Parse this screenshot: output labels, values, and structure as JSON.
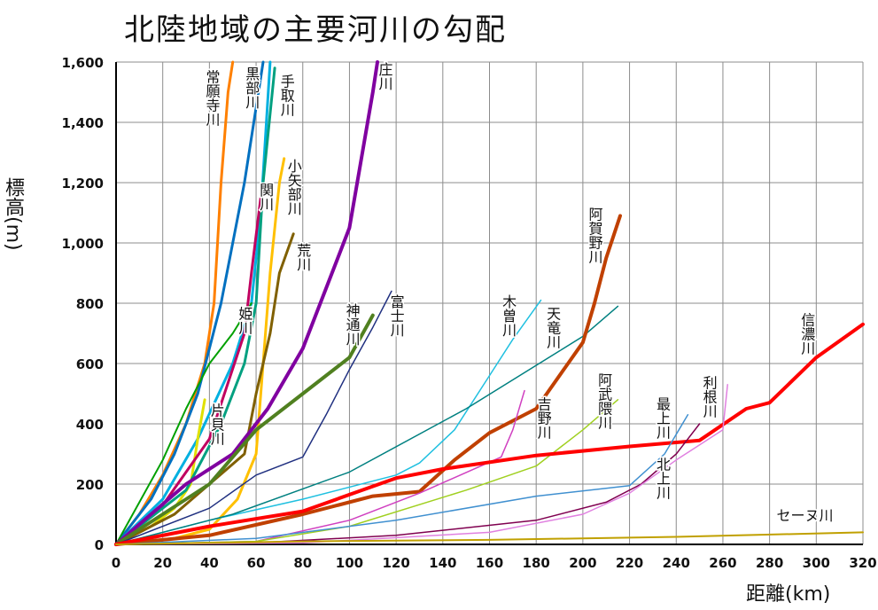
{
  "chart_data": {
    "type": "line",
    "title": "北陸地域の主要河川の勾配",
    "xlabel": "距離(km)",
    "ylabel": "標高(m)",
    "xlim": [
      0,
      320
    ],
    "ylim": [
      0,
      1600
    ],
    "x_ticks": [
      "0",
      "20",
      "40",
      "60",
      "80",
      "100",
      "120",
      "140",
      "160",
      "180",
      "200",
      "220",
      "240",
      "260",
      "280",
      "300",
      "320"
    ],
    "y_ticks": [
      "0",
      "200",
      "400",
      "600",
      "800",
      "1,000",
      "1,200",
      "1,400",
      "1,600"
    ],
    "grid": true,
    "series": [
      {
        "name": "常願寺川",
        "color": "#ff8000",
        "width": 3,
        "points": [
          [
            0,
            0
          ],
          [
            10,
            100
          ],
          [
            20,
            230
          ],
          [
            30,
            400
          ],
          [
            38,
            600
          ],
          [
            42,
            800
          ],
          [
            45,
            1200
          ],
          [
            48,
            1500
          ],
          [
            50,
            1600
          ]
        ]
      },
      {
        "name": "黒部川",
        "color": "#0070c0",
        "width": 3,
        "points": [
          [
            0,
            0
          ],
          [
            15,
            150
          ],
          [
            25,
            300
          ],
          [
            35,
            500
          ],
          [
            45,
            800
          ],
          [
            55,
            1200
          ],
          [
            60,
            1450
          ],
          [
            63,
            1600
          ]
        ]
      },
      {
        "name": "手取川",
        "color": "#00b0e0",
        "width": 3,
        "points": [
          [
            0,
            0
          ],
          [
            20,
            150
          ],
          [
            35,
            350
          ],
          [
            50,
            600
          ],
          [
            58,
            800
          ],
          [
            62,
            1100
          ],
          [
            66,
            1600
          ]
        ]
      },
      {
        "name": "片貝川",
        "color": "#e0e000",
        "width": 3,
        "points": [
          [
            0,
            0
          ],
          [
            15,
            60
          ],
          [
            25,
            120
          ],
          [
            32,
            200
          ],
          [
            35,
            350
          ],
          [
            38,
            480
          ]
        ]
      },
      {
        "name": "早月川",
        "color": "#00a000",
        "width": 2,
        "points": [
          [
            0,
            0
          ],
          [
            20,
            280
          ],
          [
            30,
            450
          ],
          [
            40,
            600
          ],
          [
            50,
            700
          ],
          [
            58,
            800
          ]
        ]
      },
      {
        "name": "関川",
        "color": "#c00060",
        "width": 3,
        "points": [
          [
            0,
            0
          ],
          [
            20,
            130
          ],
          [
            40,
            350
          ],
          [
            55,
            700
          ],
          [
            58,
            900
          ],
          [
            62,
            1150
          ]
        ]
      },
      {
        "name": "姫川",
        "color": "#00a080",
        "width": 3,
        "points": [
          [
            0,
            0
          ],
          [
            30,
            180
          ],
          [
            45,
            400
          ],
          [
            55,
            600
          ],
          [
            60,
            800
          ],
          [
            63,
            1200
          ],
          [
            68,
            1580
          ]
        ]
      },
      {
        "name": "小矢部川",
        "color": "#ffc000",
        "width": 3,
        "points": [
          [
            0,
            0
          ],
          [
            25,
            20
          ],
          [
            40,
            50
          ],
          [
            52,
            150
          ],
          [
            60,
            300
          ],
          [
            63,
            600
          ],
          [
            66,
            900
          ],
          [
            70,
            1200
          ],
          [
            72,
            1280
          ]
        ]
      },
      {
        "name": "荒川",
        "color": "#806000",
        "width": 3,
        "points": [
          [
            0,
            0
          ],
          [
            25,
            100
          ],
          [
            40,
            200
          ],
          [
            55,
            300
          ],
          [
            60,
            500
          ],
          [
            66,
            700
          ],
          [
            70,
            900
          ],
          [
            76,
            1030
          ]
        ]
      },
      {
        "name": "庄川",
        "color": "#8000a0",
        "width": 4,
        "points": [
          [
            0,
            0
          ],
          [
            30,
            200
          ],
          [
            50,
            300
          ],
          [
            65,
            450
          ],
          [
            80,
            650
          ],
          [
            95,
            950
          ],
          [
            100,
            1050
          ],
          [
            110,
            1500
          ],
          [
            112,
            1600
          ]
        ]
      },
      {
        "name": "神通川",
        "color": "#508020",
        "width": 4,
        "points": [
          [
            0,
            0
          ],
          [
            20,
            100
          ],
          [
            40,
            200
          ],
          [
            60,
            380
          ],
          [
            80,
            500
          ],
          [
            100,
            620
          ],
          [
            110,
            760
          ]
        ]
      },
      {
        "name": "富士川",
        "color": "#203080",
        "width": 1.5,
        "points": [
          [
            0,
            0
          ],
          [
            40,
            120
          ],
          [
            60,
            230
          ],
          [
            80,
            290
          ],
          [
            90,
            430
          ],
          [
            100,
            580
          ],
          [
            110,
            720
          ],
          [
            118,
            840
          ]
        ]
      },
      {
        "name": "木曽川",
        "color": "#20c0e0",
        "width": 1.5,
        "points": [
          [
            0,
            0
          ],
          [
            40,
            80
          ],
          [
            80,
            150
          ],
          [
            120,
            230
          ],
          [
            130,
            270
          ],
          [
            145,
            380
          ],
          [
            160,
            560
          ],
          [
            170,
            680
          ],
          [
            182,
            810
          ]
        ]
      },
      {
        "name": "天竜川",
        "color": "#008080",
        "width": 1.5,
        "points": [
          [
            0,
            0
          ],
          [
            50,
            100
          ],
          [
            100,
            240
          ],
          [
            150,
            450
          ],
          [
            200,
            690
          ],
          [
            215,
            790
          ]
        ]
      },
      {
        "name": "阿賀野川",
        "color": "#c04000",
        "width": 4,
        "points": [
          [
            0,
            0
          ],
          [
            40,
            30
          ],
          [
            80,
            100
          ],
          [
            110,
            160
          ],
          [
            130,
            175
          ],
          [
            145,
            280
          ],
          [
            160,
            370
          ],
          [
            180,
            450
          ],
          [
            200,
            670
          ],
          [
            205,
            800
          ],
          [
            210,
            950
          ],
          [
            216,
            1090
          ]
        ]
      },
      {
        "name": "吉野川",
        "color": "#d040c0",
        "width": 1.5,
        "points": [
          [
            0,
            0
          ],
          [
            60,
            10
          ],
          [
            100,
            80
          ],
          [
            130,
            170
          ],
          [
            165,
            290
          ],
          [
            170,
            380
          ],
          [
            175,
            510
          ]
        ]
      },
      {
        "name": "阿武隈川",
        "color": "#a0d020",
        "width": 1.5,
        "points": [
          [
            0,
            0
          ],
          [
            60,
            10
          ],
          [
            100,
            60
          ],
          [
            150,
            180
          ],
          [
            180,
            260
          ],
          [
            200,
            380
          ],
          [
            215,
            480
          ]
        ]
      },
      {
        "name": "信濃川",
        "color": "#ff0000",
        "width": 4,
        "points": [
          [
            0,
            0
          ],
          [
            40,
            60
          ],
          [
            80,
            110
          ],
          [
            120,
            220
          ],
          [
            140,
            250
          ],
          [
            180,
            295
          ],
          [
            220,
            325
          ],
          [
            250,
            345
          ],
          [
            270,
            450
          ],
          [
            280,
            470
          ],
          [
            300,
            620
          ],
          [
            320,
            730
          ]
        ]
      },
      {
        "name": "最上川",
        "color": "#4090d0",
        "width": 1.5,
        "points": [
          [
            0,
            0
          ],
          [
            60,
            20
          ],
          [
            120,
            80
          ],
          [
            180,
            160
          ],
          [
            220,
            195
          ],
          [
            235,
            300
          ],
          [
            245,
            430
          ]
        ]
      },
      {
        "name": "北上川",
        "color": "#800050",
        "width": 1.5,
        "points": [
          [
            0,
            0
          ],
          [
            60,
            5
          ],
          [
            120,
            30
          ],
          [
            180,
            80
          ],
          [
            210,
            140
          ],
          [
            225,
            200
          ],
          [
            240,
            300
          ],
          [
            250,
            400
          ]
        ]
      },
      {
        "name": "利根川",
        "color": "#e080e0",
        "width": 1.5,
        "points": [
          [
            0,
            0
          ],
          [
            80,
            5
          ],
          [
            160,
            40
          ],
          [
            200,
            100
          ],
          [
            220,
            170
          ],
          [
            240,
            280
          ],
          [
            260,
            380
          ],
          [
            262,
            530
          ]
        ]
      },
      {
        "name": "セーヌ川",
        "color": "#c0a000",
        "width": 2,
        "points": [
          [
            0,
            0
          ],
          [
            80,
            10
          ],
          [
            160,
            15
          ],
          [
            240,
            25
          ],
          [
            320,
            40
          ]
        ]
      }
    ],
    "series_labels": [
      {
        "text": "常願寺川",
        "at": [
          41,
          1575
        ]
      },
      {
        "text": "黒部川",
        "at": [
          58,
          1585
        ]
      },
      {
        "text": "手取川",
        "at": [
          73,
          1560
        ]
      },
      {
        "text": "庄川",
        "at": [
          115,
          1600
        ]
      },
      {
        "text": "小矢部川",
        "at": [
          76,
          1280
        ]
      },
      {
        "text": "関川",
        "at": [
          64,
          1200
        ]
      },
      {
        "text": "荒川",
        "at": [
          80,
          1000
        ]
      },
      {
        "text": "神通川",
        "at": [
          101,
          800
        ]
      },
      {
        "text": "姫川",
        "at": [
          55,
          790
        ]
      },
      {
        "text": "片貝川",
        "at": [
          43,
          470
        ]
      },
      {
        "text": "富士川",
        "at": [
          120,
          830
        ]
      },
      {
        "text": "木曽川",
        "at": [
          168,
          830
        ]
      },
      {
        "text": "天竜川",
        "at": [
          187,
          790
        ]
      },
      {
        "text": "阿賀野川",
        "at": [
          205,
          1120
        ]
      },
      {
        "text": "阿武隈川",
        "at": [
          209,
          570
        ]
      },
      {
        "text": "吉野川",
        "at": [
          183,
          490
        ]
      },
      {
        "text": "最上川",
        "at": [
          234,
          490
        ]
      },
      {
        "text": "利根川",
        "at": [
          254,
          560
        ]
      },
      {
        "text": "北上川",
        "at": [
          234,
          290
        ]
      },
      {
        "text": "信濃川",
        "at": [
          296,
          770
        ]
      },
      {
        "text": "セーヌ川",
        "at": [
          283,
          80
        ]
      }
    ]
  }
}
